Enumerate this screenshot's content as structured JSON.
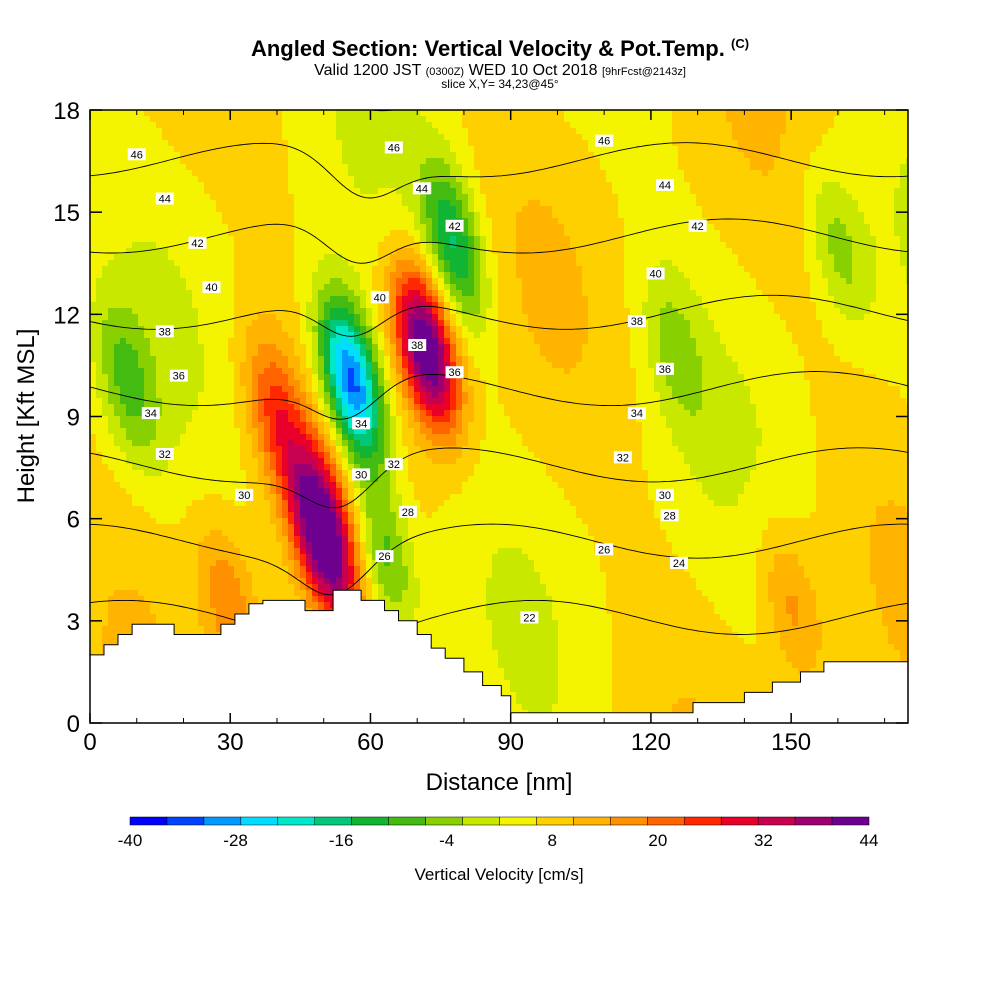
{
  "header": {
    "title_main": "Angled Section: Vertical Velocity & Pot.Temp.",
    "title_unit": "(C)",
    "subtitle_a": "Valid 1200 JST",
    "subtitle_z": "(0300Z)",
    "subtitle_b": "WED 10 Oct 2018",
    "subtitle_fcst": "[9hrFcst@2143z]",
    "slice": "slice X,Y= 34,23@45°"
  },
  "colors": {
    "ramp": [
      "#0000ff",
      "#0044ff",
      "#0099ff",
      "#00ddff",
      "#00e8c8",
      "#00c878",
      "#11b433",
      "#44bb11",
      "#88d000",
      "#c8e800",
      "#f4f400",
      "#ffd000",
      "#ffb400",
      "#ff9000",
      "#ff6400",
      "#ff2800",
      "#e8002a",
      "#c80050",
      "#9c0070",
      "#6e0090"
    ],
    "terrain": "#ffffff",
    "contour": "#000000"
  },
  "chart_data": {
    "type": "heatmap",
    "xlabel": "Distance [nm]",
    "ylabel": "Height [Kft MSL]",
    "xlim": [
      0,
      175
    ],
    "ylim": [
      0,
      18
    ],
    "xticks": [
      0,
      30,
      60,
      90,
      120,
      150
    ],
    "yticks": [
      0,
      3,
      6,
      9,
      12,
      15,
      18
    ],
    "colorbar": {
      "label": "Vertical Velocity [cm/s]",
      "min": -40,
      "max": 44,
      "step": 4,
      "tick_labels": [
        -40,
        -28,
        -16,
        -4,
        8,
        20,
        32,
        44
      ]
    },
    "features": [
      {
        "x": 72,
        "y": 11,
        "w": 44,
        "note": "updraft"
      },
      {
        "x": 50,
        "y": 5.5,
        "w": 44,
        "note": "updraft"
      },
      {
        "x": 40,
        "y": 9,
        "w": 20
      },
      {
        "x": 56,
        "y": 10,
        "w": -36,
        "note": "downdraft"
      },
      {
        "x": 63,
        "y": 5,
        "w": -12
      },
      {
        "x": 78,
        "y": 14,
        "w": -16
      },
      {
        "x": 8,
        "y": 10,
        "w": -8
      },
      {
        "x": 125,
        "y": 11,
        "w": -4
      },
      {
        "x": 160,
        "y": 14,
        "w": -6
      },
      {
        "x": 30,
        "y": 3.5,
        "w": 16
      },
      {
        "x": 150,
        "y": 3.5,
        "w": 14
      }
    ],
    "terrain": [
      [
        0,
        2
      ],
      [
        3,
        2
      ],
      [
        3,
        2.3
      ],
      [
        6,
        2.3
      ],
      [
        6,
        2.6
      ],
      [
        9,
        2.6
      ],
      [
        9,
        2.9
      ],
      [
        18,
        2.9
      ],
      [
        18,
        2.6
      ],
      [
        28,
        2.6
      ],
      [
        28,
        2.9
      ],
      [
        31,
        2.9
      ],
      [
        31,
        3.2
      ],
      [
        34,
        3.2
      ],
      [
        34,
        3.5
      ],
      [
        37,
        3.5
      ],
      [
        37,
        3.6
      ],
      [
        46,
        3.6
      ],
      [
        46,
        3.3
      ],
      [
        52,
        3.3
      ],
      [
        52,
        3.9
      ],
      [
        58,
        3.9
      ],
      [
        58,
        3.6
      ],
      [
        63,
        3.6
      ],
      [
        63,
        3.3
      ],
      [
        66,
        3.3
      ],
      [
        66,
        3
      ],
      [
        70,
        3
      ],
      [
        70,
        2.6
      ],
      [
        73,
        2.6
      ],
      [
        73,
        2.2
      ],
      [
        76,
        2.2
      ],
      [
        76,
        1.9
      ],
      [
        80,
        1.9
      ],
      [
        80,
        1.5
      ],
      [
        84,
        1.5
      ],
      [
        84,
        1.1
      ],
      [
        88,
        1.1
      ],
      [
        88,
        0.8
      ],
      [
        90,
        0.8
      ],
      [
        90,
        0.3
      ],
      [
        129,
        0.3
      ],
      [
        129,
        0.6
      ],
      [
        140,
        0.6
      ],
      [
        140,
        0.9
      ],
      [
        146,
        0.9
      ],
      [
        146,
        1.2
      ],
      [
        152,
        1.2
      ],
      [
        152,
        1.5
      ],
      [
        157,
        1.5
      ],
      [
        157,
        1.8
      ],
      [
        175,
        1.8
      ]
    ],
    "isentropes": {
      "values": [
        22,
        24,
        26,
        28,
        30,
        32,
        34,
        36,
        38,
        40,
        42,
        44,
        46
      ],
      "labeled": [
        {
          "value": 46,
          "x": 10,
          "y": 16.7
        },
        {
          "value": 46,
          "x": 65,
          "y": 16.9
        },
        {
          "value": 46,
          "x": 110,
          "y": 17.1
        },
        {
          "value": 44,
          "x": 16,
          "y": 15.4
        },
        {
          "value": 44,
          "x": 71,
          "y": 15.7
        },
        {
          "value": 44,
          "x": 123,
          "y": 15.8
        },
        {
          "value": 42,
          "x": 23,
          "y": 14.1
        },
        {
          "value": 42,
          "x": 78,
          "y": 14.6
        },
        {
          "value": 42,
          "x": 130,
          "y": 14.6
        },
        {
          "value": 40,
          "x": 26,
          "y": 12.8
        },
        {
          "value": 40,
          "x": 62,
          "y": 12.5
        },
        {
          "value": 40,
          "x": 121,
          "y": 13.2
        },
        {
          "value": 38,
          "x": 16,
          "y": 11.5
        },
        {
          "value": 38,
          "x": 70,
          "y": 11.1
        },
        {
          "value": 38,
          "x": 117,
          "y": 11.8
        },
        {
          "value": 36,
          "x": 19,
          "y": 10.2
        },
        {
          "value": 36,
          "x": 78,
          "y": 10.3
        },
        {
          "value": 36,
          "x": 123,
          "y": 10.4
        },
        {
          "value": 34,
          "x": 13,
          "y": 9.1
        },
        {
          "value": 34,
          "x": 58,
          "y": 8.8
        },
        {
          "value": 34,
          "x": 117,
          "y": 9.1
        },
        {
          "value": 32,
          "x": 16,
          "y": 7.9
        },
        {
          "value": 32,
          "x": 65,
          "y": 7.6
        },
        {
          "value": 32,
          "x": 114,
          "y": 7.8
        },
        {
          "value": 30,
          "x": 33,
          "y": 6.7
        },
        {
          "value": 30,
          "x": 58,
          "y": 7.3
        },
        {
          "value": 30,
          "x": 123,
          "y": 6.7
        },
        {
          "value": 28,
          "x": 68,
          "y": 6.2
        },
        {
          "value": 28,
          "x": 124,
          "y": 6.1
        },
        {
          "value": 26,
          "x": 63,
          "y": 4.9
        },
        {
          "value": 26,
          "x": 110,
          "y": 5.1
        },
        {
          "value": 24,
          "x": 126,
          "y": 4.7
        },
        {
          "value": 22,
          "x": 94,
          "y": 3.1
        }
      ]
    }
  }
}
